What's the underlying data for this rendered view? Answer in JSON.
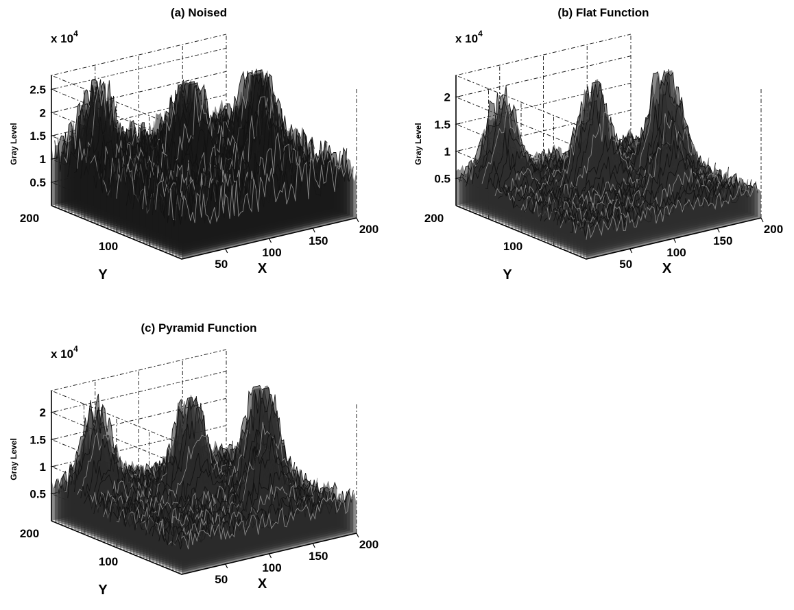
{
  "chart_data": [
    {
      "type": "surface",
      "title": "(a)  Noised",
      "zlabel": "Gray Level",
      "xlabel": "X",
      "ylabel": "Y",
      "z_multiplier": "x 10",
      "z_exponent": "4",
      "z_ticks": [
        "0.5",
        "1",
        "1.5",
        "2",
        "2.5"
      ],
      "z_tick_values": [
        0.5,
        1,
        1.5,
        2,
        2.5
      ],
      "zlim": [
        0,
        2.8
      ],
      "x_ticks": [
        "50",
        "100",
        "150",
        "200"
      ],
      "x_tick_values": [
        50,
        100,
        150,
        200
      ],
      "xlim": [
        0,
        200
      ],
      "y_ticks": [
        "100",
        "200"
      ],
      "y_tick_values": [
        100,
        200
      ],
      "ylim": [
        0,
        200
      ],
      "grid": true,
      "surface_color": "#1a1a1a",
      "peaks": [
        {
          "x": 30,
          "y": 170,
          "height": 1.9
        },
        {
          "x": 95,
          "y": 115,
          "height": 2.2
        },
        {
          "x": 160,
          "y": 100,
          "height": 2.4
        },
        {
          "x": 125,
          "y": 40,
          "height": 1.6
        }
      ],
      "base_level": 0.6,
      "noise": 0.9
    },
    {
      "type": "surface",
      "title": "(b)  Flat Function",
      "zlabel": "Gray Level",
      "xlabel": "X",
      "ylabel": "Y",
      "z_multiplier": "x 10",
      "z_exponent": "4",
      "z_ticks": [
        "0.5",
        "1",
        "1.5",
        "2"
      ],
      "z_tick_values": [
        0.5,
        1,
        1.5,
        2
      ],
      "zlim": [
        0,
        2.4
      ],
      "x_ticks": [
        "50",
        "100",
        "150",
        "200"
      ],
      "x_tick_values": [
        50,
        100,
        150,
        200
      ],
      "xlim": [
        0,
        200
      ],
      "y_ticks": [
        "100",
        "200"
      ],
      "y_tick_values": [
        100,
        200
      ],
      "ylim": [
        0,
        200
      ],
      "grid": true,
      "surface_color": "#2e2e2e",
      "peaks": [
        {
          "x": 30,
          "y": 170,
          "height": 1.6
        },
        {
          "x": 95,
          "y": 115,
          "height": 2.0
        },
        {
          "x": 165,
          "y": 100,
          "height": 2.1
        },
        {
          "x": 125,
          "y": 40,
          "height": 1.3
        }
      ],
      "base_level": 0.35,
      "noise": 0.35
    },
    {
      "type": "surface",
      "title": "(c)  Pyramid Function",
      "zlabel": "Gray Level",
      "xlabel": "X",
      "ylabel": "Y",
      "z_multiplier": "x 10",
      "z_exponent": "4",
      "z_ticks": [
        "0.5",
        "1",
        "1.5",
        "2"
      ],
      "z_tick_values": [
        0.5,
        1,
        1.5,
        2
      ],
      "zlim": [
        0,
        2.4
      ],
      "x_ticks": [
        "50",
        "100",
        "150",
        "200"
      ],
      "x_tick_values": [
        50,
        100,
        150,
        200
      ],
      "xlim": [
        0,
        200
      ],
      "y_ticks": [
        "100",
        "200"
      ],
      "y_tick_values": [
        100,
        200
      ],
      "ylim": [
        0,
        200
      ],
      "grid": true,
      "surface_color": "#2a2a2a",
      "peaks": [
        {
          "x": 30,
          "y": 170,
          "height": 1.6
        },
        {
          "x": 95,
          "y": 115,
          "height": 2.0
        },
        {
          "x": 165,
          "y": 100,
          "height": 2.1
        },
        {
          "x": 125,
          "y": 40,
          "height": 1.4
        }
      ],
      "base_level": 0.4,
      "noise": 0.4
    }
  ]
}
